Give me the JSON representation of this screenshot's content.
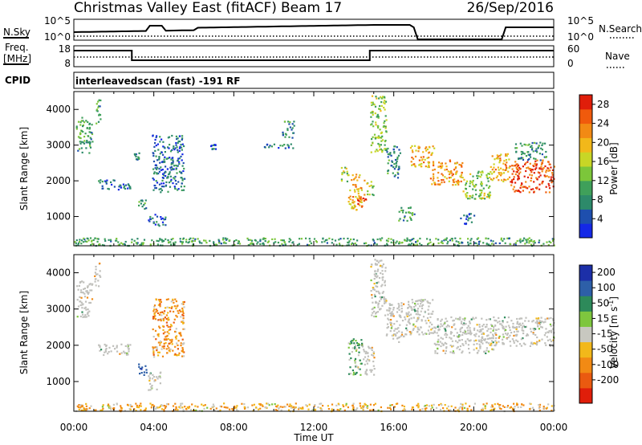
{
  "header": {
    "title": "Christmas Valley East (fitACF)",
    "beam": "Beam 17",
    "date": "26/Sep/2016"
  },
  "strips": {
    "nsky_label": "N.Sky",
    "nsearch_label": "N.Search",
    "noise_ticks": [
      "10^5",
      "10^0"
    ],
    "freq_label_1": "Freq.",
    "freq_label_2": "[MHz]",
    "freq_ticks": [
      "18",
      "8"
    ],
    "nave_label": "Nave",
    "nave_ticks": [
      "60",
      "0"
    ],
    "cpid_label": "CPID",
    "cpid_text": "interleavedscan (fast) -191 RF"
  },
  "colors": {
    "power": [
      "#1428e6",
      "#1e4fae",
      "#2d8a6a",
      "#3fa05a",
      "#7cc63a",
      "#c8d626",
      "#f2b81a",
      "#f28a14",
      "#f05a0c",
      "#e01e0a"
    ],
    "velocity": [
      "#1c2fa8",
      "#2d5fa8",
      "#2d8a5a",
      "#7ec63e",
      "#c8c8c0",
      "#f2b81a",
      "#f28a14",
      "#ea5a10",
      "#e01e0a"
    ],
    "ground_scatter": "#c0c0bc"
  },
  "chart_data": [
    {
      "type": "heatmap",
      "name": "power",
      "x": {
        "label": "Time UT",
        "ticks": [
          "00:00",
          "04:00",
          "08:00",
          "12:00",
          "16:00",
          "20:00",
          "00:00"
        ],
        "range_hours": [
          0,
          24
        ]
      },
      "y": {
        "label": "Slant Range [km]",
        "ticks": [
          1000,
          2000,
          3000,
          4000
        ],
        "range": [
          180,
          4500
        ]
      },
      "colorbar": {
        "label": "Power [dB]",
        "ticks": [
          4,
          8,
          12,
          16,
          20,
          24,
          28
        ],
        "range": [
          0,
          30
        ]
      },
      "regions": [
        {
          "t0": 0.1,
          "t1": 0.9,
          "r0": 2800,
          "r1": 3800,
          "v": 10
        },
        {
          "t0": 1.0,
          "t1": 1.3,
          "r0": 3600,
          "r1": 4300,
          "v": 10
        },
        {
          "t0": 1.2,
          "t1": 2.8,
          "r0": 1750,
          "r1": 2050,
          "v": 5
        },
        {
          "t0": 3.0,
          "t1": 3.3,
          "r0": 2600,
          "r1": 2800,
          "v": 10
        },
        {
          "t0": 3.2,
          "t1": 3.6,
          "r0": 1200,
          "r1": 1500,
          "v": 8
        },
        {
          "t0": 3.9,
          "t1": 5.5,
          "r0": 1700,
          "r1": 3300,
          "v": 6
        },
        {
          "t0": 3.7,
          "t1": 4.6,
          "r0": 750,
          "r1": 1100,
          "v": 6
        },
        {
          "t0": 6.8,
          "t1": 7.1,
          "r0": 2900,
          "r1": 3100,
          "v": 6
        },
        {
          "t0": 9.5,
          "t1": 11.0,
          "r0": 2900,
          "r1": 3050,
          "v": 6
        },
        {
          "t0": 10.4,
          "t1": 11.0,
          "r0": 3200,
          "r1": 3700,
          "v": 8
        },
        {
          "t0": 13.3,
          "t1": 13.7,
          "r0": 2000,
          "r1": 2400,
          "v": 14
        },
        {
          "t0": 13.7,
          "t1": 14.5,
          "r0": 1200,
          "r1": 2200,
          "v": 20
        },
        {
          "t0": 14.1,
          "t1": 14.6,
          "r0": 1300,
          "r1": 1600,
          "v": 28
        },
        {
          "t0": 14.6,
          "t1": 15.0,
          "r0": 1600,
          "r1": 2000,
          "v": 16
        },
        {
          "t0": 14.8,
          "t1": 15.6,
          "r0": 2800,
          "r1": 4400,
          "v": 14
        },
        {
          "t0": 15.6,
          "t1": 16.3,
          "r0": 2100,
          "r1": 3000,
          "v": 8
        },
        {
          "t0": 16.2,
          "t1": 17.0,
          "r0": 900,
          "r1": 1300,
          "v": 10
        },
        {
          "t0": 16.8,
          "t1": 18.0,
          "r0": 2400,
          "r1": 3000,
          "v": 20
        },
        {
          "t0": 17.8,
          "t1": 19.4,
          "r0": 1900,
          "r1": 2600,
          "v": 22
        },
        {
          "t0": 19.4,
          "t1": 20.8,
          "r0": 1500,
          "r1": 2300,
          "v": 14
        },
        {
          "t0": 19.3,
          "t1": 20.0,
          "r0": 800,
          "r1": 1100,
          "v": 6
        },
        {
          "t0": 20.8,
          "t1": 21.8,
          "r0": 2000,
          "r1": 2800,
          "v": 20
        },
        {
          "t0": 21.8,
          "t1": 24.0,
          "r0": 1700,
          "r1": 2600,
          "v": 26
        },
        {
          "t0": 22.0,
          "t1": 23.6,
          "r0": 2600,
          "r1": 3100,
          "v": 8
        },
        {
          "t0": 0.0,
          "t1": 24.0,
          "r0": 200,
          "r1": 420,
          "v": 10
        }
      ]
    },
    {
      "type": "heatmap",
      "name": "velocity",
      "x": {
        "label": "Time UT",
        "ticks": [
          "00:00",
          "04:00",
          "08:00",
          "12:00",
          "16:00",
          "20:00",
          "00:00"
        ],
        "range_hours": [
          0,
          24
        ]
      },
      "y": {
        "label": "Slant Range [km]",
        "ticks": [
          1000,
          2000,
          3000,
          4000
        ],
        "range": [
          180,
          4500
        ]
      },
      "colorbar": {
        "label": "Velocity [m s",
        "label_sup": "-1",
        "ticks": [
          200,
          100,
          50,
          15,
          -15,
          -50,
          -100,
          -200
        ],
        "range": [
          -250,
          250
        ]
      },
      "regions": [
        {
          "t0": 0.1,
          "t1": 0.9,
          "r0": 2800,
          "r1": 3800,
          "v": 0,
          "gs": true
        },
        {
          "t0": 1.0,
          "t1": 1.3,
          "r0": 3600,
          "r1": 4300,
          "v": 0,
          "gs": true
        },
        {
          "t0": 1.2,
          "t1": 2.8,
          "r0": 1750,
          "r1": 2050,
          "v": 0,
          "gs": true
        },
        {
          "t0": 3.2,
          "t1": 3.6,
          "r0": 1200,
          "r1": 1500,
          "v": 150
        },
        {
          "t0": 3.7,
          "t1": 4.3,
          "r0": 750,
          "r1": 1300,
          "v": 0,
          "gs": true
        },
        {
          "t0": 3.9,
          "t1": 5.5,
          "r0": 1700,
          "r1": 3300,
          "v": -60
        },
        {
          "t0": 13.7,
          "t1": 14.4,
          "r0": 1200,
          "r1": 2200,
          "v": 30
        },
        {
          "t0": 14.4,
          "t1": 15.0,
          "r0": 1200,
          "r1": 2000,
          "v": 0,
          "gs": true
        },
        {
          "t0": 14.8,
          "t1": 15.6,
          "r0": 2800,
          "r1": 4400,
          "v": 0,
          "gs": true
        },
        {
          "t0": 15.6,
          "t1": 16.5,
          "r0": 2100,
          "r1": 3200,
          "v": 0,
          "gs": true
        },
        {
          "t0": 16.5,
          "t1": 18.0,
          "r0": 2300,
          "r1": 3300,
          "v": 0,
          "gs": true
        },
        {
          "t0": 18.0,
          "t1": 21.0,
          "r0": 1800,
          "r1": 2800,
          "v": 0,
          "gs": true
        },
        {
          "t0": 21.0,
          "t1": 24.0,
          "r0": 2000,
          "r1": 2800,
          "v": 0,
          "gs": true
        },
        {
          "t0": 0.0,
          "t1": 24.0,
          "r0": 200,
          "r1": 420,
          "v": -40
        }
      ]
    }
  ]
}
